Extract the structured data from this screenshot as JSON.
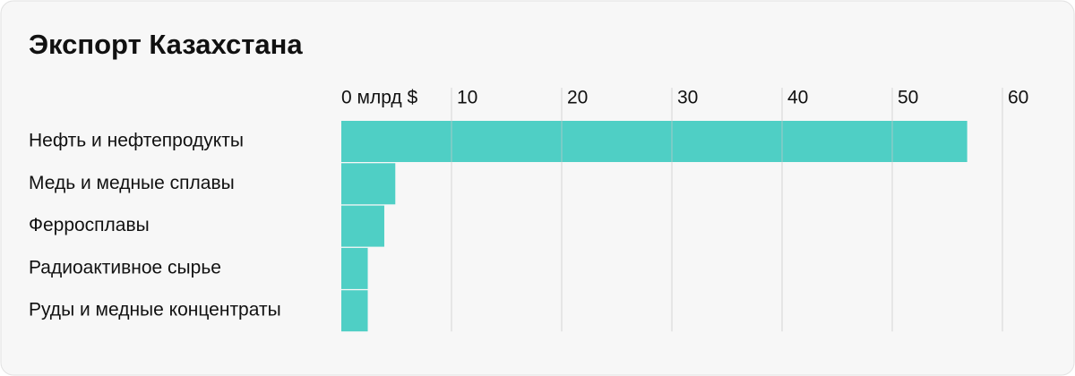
{
  "chart_data": {
    "type": "bar",
    "orientation": "horizontal",
    "title": "Экспорт Казахстана",
    "categories": [
      "Нефть и нефтепродукты",
      "Медь и медные сплавы",
      "Ферросплавы",
      "Радиоактивное сырье",
      "Руды и медные концентраты"
    ],
    "values": [
      56.8,
      4.9,
      3.9,
      2.4,
      2.4
    ],
    "color": "#4fcfc5",
    "xlim": [
      0,
      60
    ],
    "xticks": [
      {
        "value": 0,
        "label": "0 млрд $"
      },
      10,
      20,
      30,
      40,
      50,
      60
    ],
    "grid": true
  }
}
